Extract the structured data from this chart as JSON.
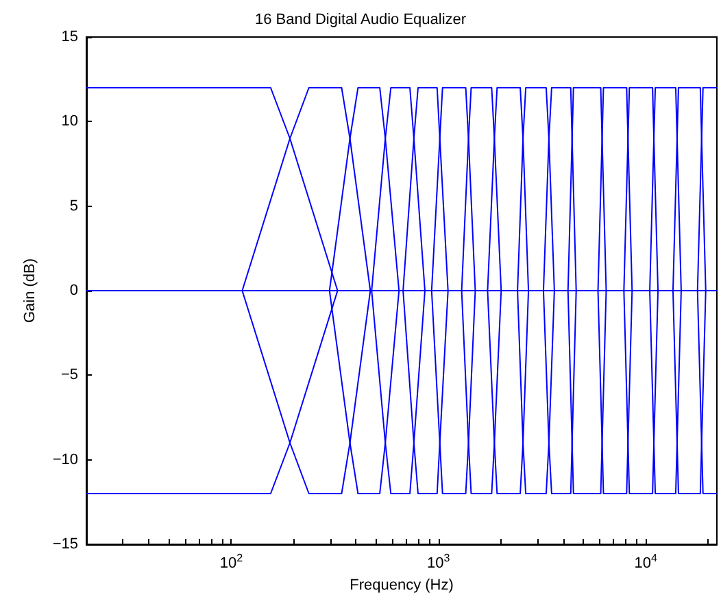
{
  "chart_data": {
    "type": "line",
    "title": "16 Band Digital Audio Equalizer",
    "xlabel": "Frequency (Hz)",
    "ylabel": "Gain (dB)",
    "log": "x",
    "grid": false,
    "marker": "none",
    "xlim": [
      20,
      22050
    ],
    "ylim": [
      -15,
      15
    ],
    "xticks": [
      {
        "value": 20,
        "label": null
      },
      {
        "value": 30,
        "label": null
      },
      {
        "value": 40,
        "label": null
      },
      {
        "value": 50,
        "label": null
      },
      {
        "value": 60,
        "label": null
      },
      {
        "value": 70,
        "label": null
      },
      {
        "value": 80,
        "label": null
      },
      {
        "value": 90,
        "label": null
      },
      {
        "value": 100,
        "label": "10$^{2}$"
      },
      {
        "value": 200,
        "label": null
      },
      {
        "value": 300,
        "label": null
      },
      {
        "value": 400,
        "label": null
      },
      {
        "value": 500,
        "label": null
      },
      {
        "value": 600,
        "label": null
      },
      {
        "value": 700,
        "label": null
      },
      {
        "value": 800,
        "label": null
      },
      {
        "value": 900,
        "label": null
      },
      {
        "value": 1000,
        "label": "10$^{3}$"
      },
      {
        "value": 2000,
        "label": null
      },
      {
        "value": 3000,
        "label": null
      },
      {
        "value": 4000,
        "label": null
      },
      {
        "value": 5000,
        "label": null
      },
      {
        "value": 6000,
        "label": null
      },
      {
        "value": 7000,
        "label": null
      },
      {
        "value": 8000,
        "label": null
      },
      {
        "value": 9000,
        "label": null
      },
      {
        "value": 10000,
        "label": "10$^{4}$"
      },
      {
        "value": 20000,
        "label": null
      }
    ],
    "yticks": [
      {
        "value": -15,
        "label": "−15"
      },
      {
        "value": -10,
        "label": "−10"
      },
      {
        "value": -5,
        "label": "−5"
      },
      0,
      5,
      10,
      15
    ],
    "series": [
      {
        "color": "#0000ff",
        "x": [
          20,
          155,
          192,
          326,
          22050
        ],
        "values": [
          12,
          12,
          9,
          0,
          0
        ]
      },
      {
        "color": "#0000ff",
        "x": [
          20,
          113,
          192,
          237,
          341,
          374,
          469,
          22050
        ],
        "values": [
          0,
          0,
          9,
          12,
          12,
          9,
          0,
          0
        ]
      },
      {
        "color": "#0000ff",
        "x": [
          20,
          298,
          374,
          409,
          521,
          554,
          645,
          22050
        ],
        "values": [
          0,
          0,
          9,
          12,
          12,
          9,
          0,
          0
        ]
      },
      {
        "color": "#0000ff",
        "x": [
          20,
          476,
          554,
          589,
          728,
          761,
          860,
          22050
        ],
        "values": [
          0,
          0,
          9,
          12,
          12,
          9,
          0,
          0
        ]
      },
      {
        "color": "#0000ff",
        "x": [
          20,
          675,
          761,
          797,
          985,
          1015,
          1112,
          22050
        ],
        "values": [
          0,
          0,
          9,
          12,
          12,
          9,
          0,
          0
        ]
      },
      {
        "color": "#0000ff",
        "x": [
          20,
          927,
          1015,
          1046,
          1354,
          1396,
          1505,
          22050
        ],
        "values": [
          0,
          0,
          9,
          12,
          12,
          9,
          0,
          0
        ]
      },
      {
        "color": "#0000ff",
        "x": [
          20,
          1294,
          1396,
          1438,
          1806,
          1861,
          2007,
          22050
        ],
        "values": [
          0,
          0,
          9,
          12,
          12,
          9,
          0,
          0
        ]
      },
      {
        "color": "#0000ff",
        "x": [
          20,
          1726,
          1861,
          1918,
          2481,
          2558,
          2718,
          22050
        ],
        "values": [
          0,
          0,
          9,
          12,
          12,
          9,
          0,
          0
        ]
      },
      {
        "color": "#0000ff",
        "x": [
          20,
          2407,
          2558,
          2637,
          3309,
          3411,
          3624,
          22050
        ],
        "values": [
          0,
          0,
          9,
          12,
          12,
          9,
          0,
          0
        ]
      },
      {
        "color": "#0000ff",
        "x": [
          20,
          3211,
          3411,
          3516,
          4347,
          4413,
          4619,
          22050
        ],
        "values": [
          0,
          0,
          9,
          12,
          12,
          9,
          0,
          0
        ]
      },
      {
        "color": "#0000ff",
        "x": [
          20,
          4217,
          4413,
          4481,
          6066,
          6159,
          6446,
          22050
        ],
        "values": [
          0,
          0,
          9,
          12,
          12,
          9,
          0,
          0
        ]
      },
      {
        "color": "#0000ff",
        "x": [
          20,
          5885,
          6159,
          6253,
          8089,
          8213,
          8596,
          22050
        ],
        "values": [
          0,
          0,
          9,
          12,
          12,
          9,
          0,
          0
        ]
      },
      {
        "color": "#0000ff",
        "x": [
          20,
          7848,
          8213,
          8339,
          10790,
          10950,
          11460,
          22050
        ],
        "values": [
          0,
          0,
          9,
          12,
          12,
          9,
          0,
          0
        ]
      },
      {
        "color": "#0000ff",
        "x": [
          20,
          10460,
          10950,
          11120,
          13960,
          14170,
          14830,
          22050
        ],
        "values": [
          0,
          0,
          9,
          12,
          12,
          9,
          0,
          0
        ]
      },
      {
        "color": "#0000ff",
        "x": [
          20,
          13540,
          14170,
          14390,
          18340,
          18610,
          19480,
          22050
        ],
        "values": [
          0,
          0,
          9,
          12,
          12,
          9,
          0,
          0
        ]
      },
      {
        "color": "#0000ff",
        "x": [
          20,
          17780,
          18610,
          18900,
          22050
        ],
        "values": [
          0,
          0,
          9,
          12,
          12
        ]
      },
      {
        "color": "#0000ff",
        "x": [
          20,
          155,
          192,
          326,
          22050
        ],
        "values": [
          -12,
          -12,
          -9,
          0,
          0
        ]
      },
      {
        "color": "#0000ff",
        "x": [
          20,
          113,
          192,
          237,
          341,
          374,
          469,
          22050
        ],
        "values": [
          0,
          0,
          -9,
          -12,
          -12,
          -9,
          0,
          0
        ]
      },
      {
        "color": "#0000ff",
        "x": [
          20,
          298,
          374,
          409,
          521,
          554,
          645,
          22050
        ],
        "values": [
          0,
          0,
          -9,
          -12,
          -12,
          -9,
          0,
          0
        ]
      },
      {
        "color": "#0000ff",
        "x": [
          20,
          476,
          554,
          589,
          728,
          761,
          860,
          22050
        ],
        "values": [
          0,
          0,
          -9,
          -12,
          -12,
          -9,
          0,
          0
        ]
      },
      {
        "color": "#0000ff",
        "x": [
          20,
          675,
          761,
          797,
          985,
          1015,
          1112,
          22050
        ],
        "values": [
          0,
          0,
          -9,
          -12,
          -12,
          -9,
          0,
          0
        ]
      },
      {
        "color": "#0000ff",
        "x": [
          20,
          927,
          1015,
          1046,
          1354,
          1396,
          1505,
          22050
        ],
        "values": [
          0,
          0,
          -9,
          -12,
          -12,
          -9,
          0,
          0
        ]
      },
      {
        "color": "#0000ff",
        "x": [
          20,
          1294,
          1396,
          1438,
          1806,
          1861,
          2007,
          22050
        ],
        "values": [
          0,
          0,
          -9,
          -12,
          -12,
          -9,
          0,
          0
        ]
      },
      {
        "color": "#0000ff",
        "x": [
          20,
          1726,
          1861,
          1918,
          2481,
          2558,
          2718,
          22050
        ],
        "values": [
          0,
          0,
          -9,
          -12,
          -12,
          -9,
          0,
          0
        ]
      },
      {
        "color": "#0000ff",
        "x": [
          20,
          2407,
          2558,
          2637,
          3309,
          3411,
          3624,
          22050
        ],
        "values": [
          0,
          0,
          -9,
          -12,
          -12,
          -9,
          0,
          0
        ]
      },
      {
        "color": "#0000ff",
        "x": [
          20,
          3211,
          3411,
          3516,
          4347,
          4413,
          4619,
          22050
        ],
        "values": [
          0,
          0,
          -9,
          -12,
          -12,
          -9,
          0,
          0
        ]
      },
      {
        "color": "#0000ff",
        "x": [
          20,
          4217,
          4413,
          4481,
          6066,
          6159,
          6446,
          22050
        ],
        "values": [
          0,
          0,
          -9,
          -12,
          -12,
          -9,
          0,
          0
        ]
      },
      {
        "color": "#0000ff",
        "x": [
          20,
          5885,
          6159,
          6253,
          8089,
          8213,
          8596,
          22050
        ],
        "values": [
          0,
          0,
          -9,
          -12,
          -12,
          -9,
          0,
          0
        ]
      },
      {
        "color": "#0000ff",
        "x": [
          20,
          7848,
          8213,
          8339,
          10790,
          10950,
          11460,
          22050
        ],
        "values": [
          0,
          0,
          -9,
          -12,
          -12,
          -9,
          0,
          0
        ]
      },
      {
        "color": "#0000ff",
        "x": [
          20,
          10460,
          10950,
          11120,
          13960,
          14170,
          14830,
          22050
        ],
        "values": [
          0,
          0,
          -9,
          -12,
          -12,
          -9,
          0,
          0
        ]
      },
      {
        "color": "#0000ff",
        "x": [
          20,
          13540,
          14170,
          14390,
          18340,
          18610,
          19480,
          22050
        ],
        "values": [
          0,
          0,
          -9,
          -12,
          -12,
          -9,
          0,
          0
        ]
      },
      {
        "color": "#0000ff",
        "x": [
          20,
          17780,
          18610,
          18900,
          22050
        ],
        "values": [
          0,
          0,
          -9,
          -12,
          -12
        ]
      }
    ]
  }
}
